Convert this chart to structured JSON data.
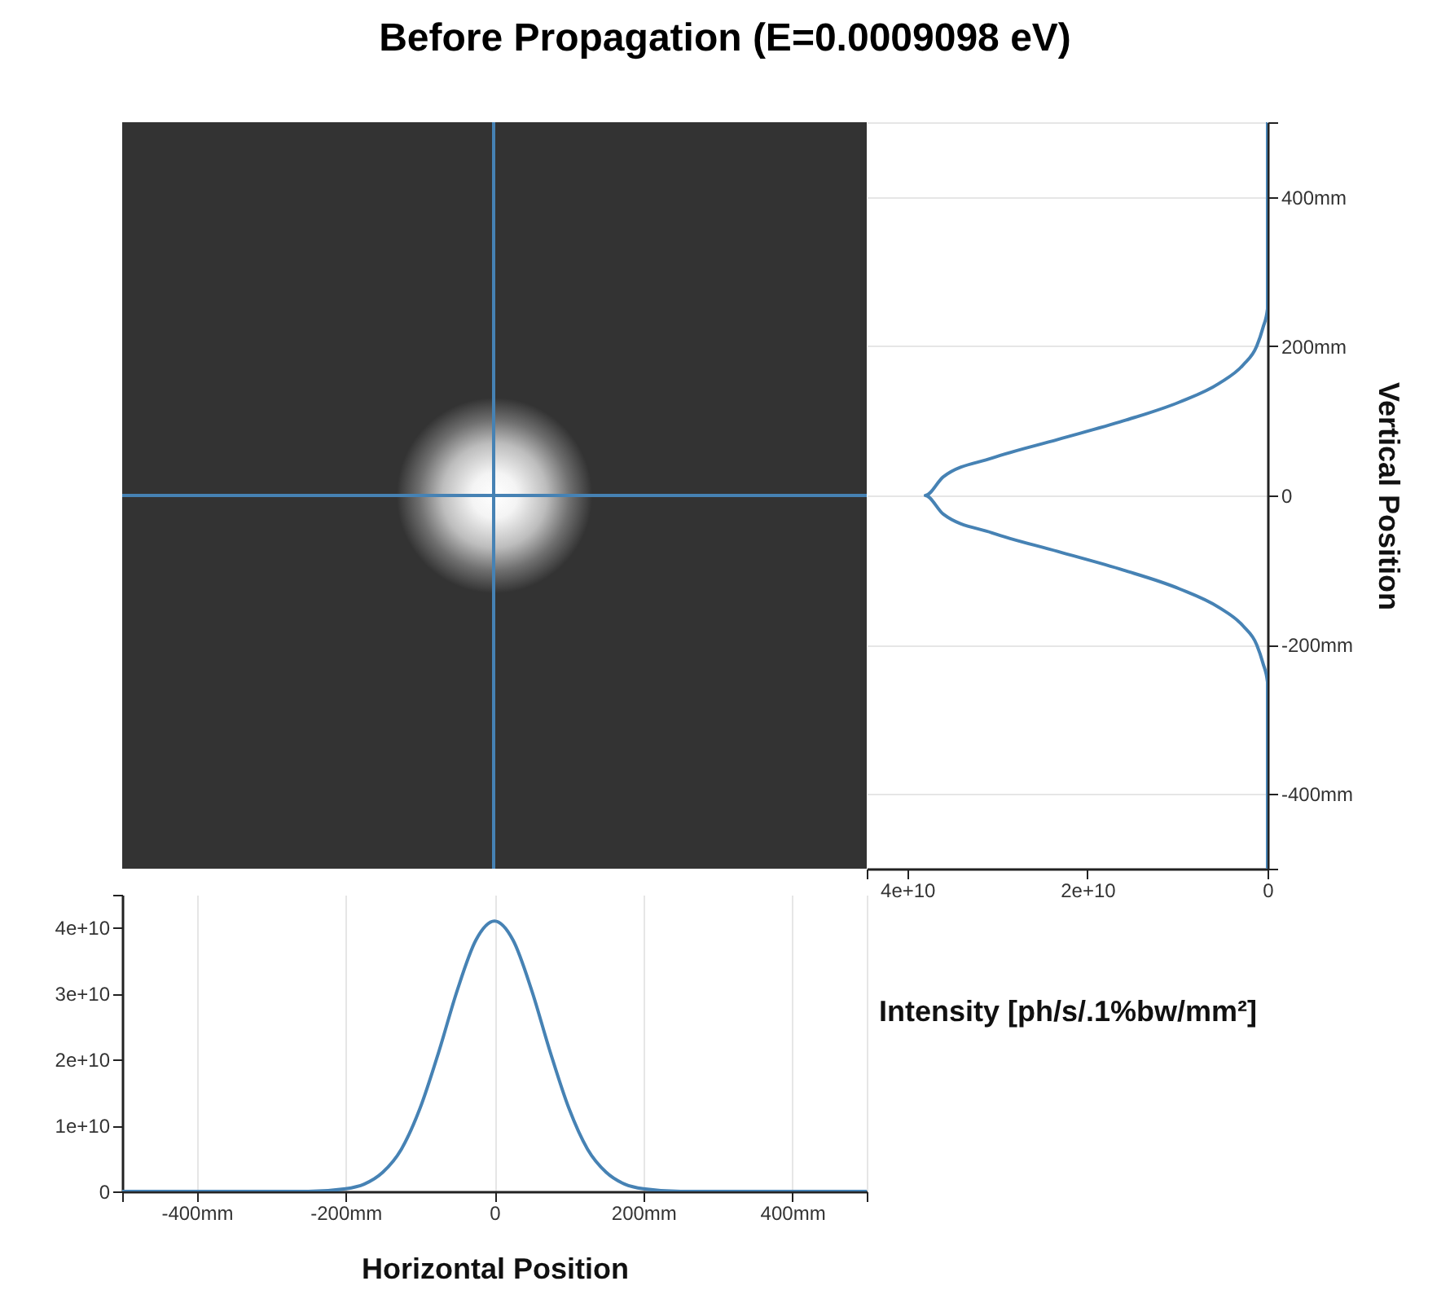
{
  "chart_data": [
    {
      "type": "line",
      "orientation": "horizontal",
      "title": "Before Propagation (E=0.0009098 eV)",
      "ylabel": "Vertical Position",
      "xlabel": "Intensity [ph/s/.1%bw/mm²]",
      "x": [
        -500,
        -250,
        -225,
        -200,
        -175,
        -150,
        -125,
        -100,
        -75,
        -50,
        -25,
        0,
        25,
        50,
        75,
        100,
        125,
        150,
        175,
        200,
        225,
        250,
        500
      ],
      "series": [
        {
          "color": "#4682b4",
          "values": [
            0,
            0,
            500000000.0,
            1200000000.0,
            2700000000.0,
            5400000000.0,
            9800000000.0,
            16000000000.0,
            23300000000.0,
            30600000000.0,
            36000000000.0,
            38000000000.0,
            36000000000.0,
            30600000000.0,
            23300000000.0,
            16000000000.0,
            9800000000.0,
            5400000000.0,
            2700000000.0,
            1200000000.0,
            500000000.0,
            0,
            0
          ]
        }
      ],
      "xlim": [
        44500000000.0,
        0
      ],
      "xticks": [
        {
          "value": 44500000000.0,
          "label": null
        },
        {
          "value": 40000000000.0,
          "label": "4e+10"
        },
        {
          "value": 20000000000.0,
          "label": "2e+10"
        },
        0
      ],
      "ylim": [
        -500,
        500
      ],
      "yticks": [
        {
          "value": -500,
          "label": null
        },
        {
          "value": -400,
          "label": "-400mm"
        },
        {
          "value": -200,
          "label": "-200mm"
        },
        0,
        {
          "value": 200,
          "label": "200mm"
        },
        {
          "value": 400,
          "label": "400mm"
        },
        {
          "value": 500,
          "label": null
        }
      ],
      "grid": "y"
    },
    {
      "type": "line",
      "xlabel": "Horizontal Position",
      "x": [
        -500,
        -250,
        -200,
        -175,
        -150,
        -125,
        -100,
        -75,
        -50,
        -25,
        0,
        25,
        50,
        75,
        100,
        125,
        150,
        175,
        200,
        250,
        500
      ],
      "series": [
        {
          "color": "#4682b4",
          "values": [
            0,
            0,
            400000000.0,
            1100000000.0,
            2900000000.0,
            6400000000.0,
            12600000000.0,
            21100000000.0,
            30500000000.0,
            38100000000.0,
            41000000000.0,
            38100000000.0,
            30500000000.0,
            21100000000.0,
            12600000000.0,
            6400000000.0,
            2900000000.0,
            1100000000.0,
            400000000.0,
            0,
            0
          ]
        }
      ],
      "xlim": [
        -500,
        500
      ],
      "xticks": [
        {
          "value": -500,
          "label": null
        },
        {
          "value": -400,
          "label": "-400mm"
        },
        {
          "value": -200,
          "label": "-200mm"
        },
        0,
        {
          "value": 200,
          "label": "200mm"
        },
        {
          "value": 400,
          "label": "400mm"
        },
        {
          "value": 500,
          "label": null
        }
      ],
      "ylim": [
        0,
        45000000000.0
      ],
      "yticks": [
        0,
        {
          "value": 10000000000.0,
          "label": "1e+10"
        },
        {
          "value": 20000000000.0,
          "label": "2e+10"
        },
        {
          "value": 30000000000.0,
          "label": "3e+10"
        },
        {
          "value": 40000000000.0,
          "label": "4e+10"
        },
        {
          "value": 45000000000.0,
          "label": null
        }
      ],
      "grid": "x"
    }
  ]
}
